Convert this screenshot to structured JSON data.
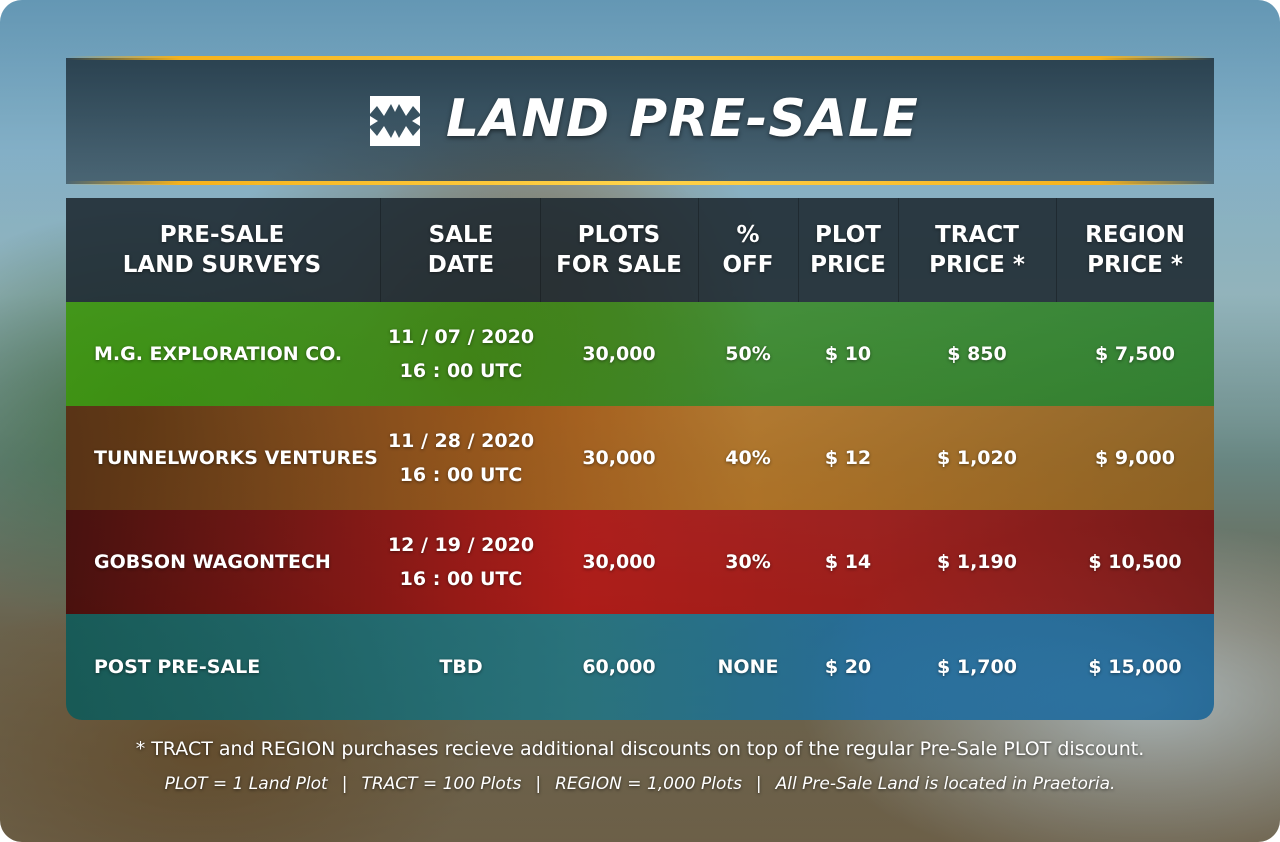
{
  "title": "LAND PRE-SALE",
  "logo": "fanged-maw-icon",
  "colors": {
    "gold_line": "#f5b21c",
    "row_green": "#3c960a",
    "row_orange": "#b45a0a",
    "row_red": "#be0a0a",
    "row_blue": "#146e8c"
  },
  "table": {
    "headers": [
      [
        "PRE-SALE",
        "LAND SURVEYS"
      ],
      [
        "SALE",
        "DATE"
      ],
      [
        "PLOTS",
        "FOR SALE"
      ],
      [
        "%",
        "OFF"
      ],
      [
        "PLOT",
        "PRICE"
      ],
      [
        "TRACT",
        "PRICE *"
      ],
      [
        "REGION",
        "PRICE *"
      ]
    ],
    "rows": [
      {
        "survey": "M.G. EXPLORATION CO.",
        "date": "11 / 07 / 2020",
        "time": "16 : 00 UTC",
        "plots": "30,000",
        "off": "50%",
        "plot_price": "$ 10",
        "tract_price": "$ 850",
        "region_price": "$ 7,500"
      },
      {
        "survey": "TUNNELWORKS VENTURES",
        "date": "11 / 28 / 2020",
        "time": "16 : 00 UTC",
        "plots": "30,000",
        "off": "40%",
        "plot_price": "$ 12",
        "tract_price": "$ 1,020",
        "region_price": "$ 9,000"
      },
      {
        "survey": "GOBSON WAGONTECH",
        "date": "12 / 19 / 2020",
        "time": "16 : 00 UTC",
        "plots": "30,000",
        "off": "30%",
        "plot_price": "$ 14",
        "tract_price": "$ 1,190",
        "region_price": "$ 10,500"
      },
      {
        "survey": "POST PRE-SALE",
        "date": "TBD",
        "time": "",
        "plots": "60,000",
        "off": "NONE",
        "plot_price": "$ 20",
        "tract_price": "$ 1,700",
        "region_price": "$ 15,000"
      }
    ]
  },
  "footnote": "* TRACT and REGION purchases recieve additional discounts on top of the regular Pre-Sale PLOT discount.",
  "legend": [
    "PLOT = 1 Land Plot",
    "TRACT = 100 Plots",
    "REGION = 1,000 Plots",
    "All Pre-Sale Land is located in Praetoria."
  ]
}
